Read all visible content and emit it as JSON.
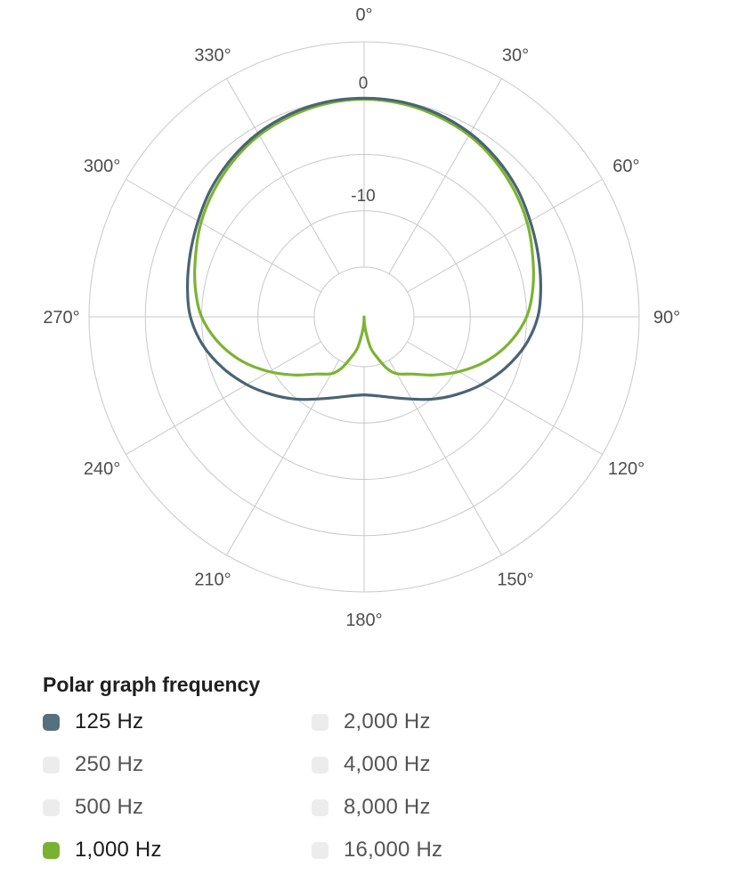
{
  "chart_data": {
    "type": "line",
    "subtype": "polar-pattern",
    "title": "Polar graph frequency",
    "angle_axis": {
      "tick_step_deg": 30,
      "labels": [
        "0°",
        "30°",
        "60°",
        "90°",
        "120°",
        "150°",
        "180°",
        "210°",
        "240°",
        "270°",
        "300°",
        "330°"
      ]
    },
    "radial_axis": {
      "unit": "dB",
      "ring_values_db": [
        5,
        0,
        -5,
        -10,
        -15
      ],
      "shown_labels": [
        {
          "text": "0",
          "db": 0
        },
        {
          "text": "-10",
          "db": -10
        }
      ],
      "center_db": -19.45
    },
    "grid_color": "#c8c8c8",
    "label_color": "#4d4d4d",
    "series": [
      {
        "name": "125 Hz",
        "color": "#4a6473",
        "symmetry": "mirror",
        "points_deg_db": [
          [
            0,
            0
          ],
          [
            10,
            -0.05
          ],
          [
            20,
            -0.25
          ],
          [
            30,
            -0.6
          ],
          [
            40,
            -1.1
          ],
          [
            50,
            -1.7
          ],
          [
            60,
            -2.4
          ],
          [
            70,
            -3.0
          ],
          [
            80,
            -3.5
          ],
          [
            90,
            -4.0
          ],
          [
            100,
            -4.9
          ],
          [
            110,
            -6.1
          ],
          [
            120,
            -7.4
          ],
          [
            130,
            -8.7
          ],
          [
            140,
            -9.9
          ],
          [
            150,
            -11.0
          ],
          [
            160,
            -11.8
          ],
          [
            170,
            -12.3
          ],
          [
            180,
            -12.5
          ]
        ]
      },
      {
        "name": "1,000 Hz",
        "color": "#7cb332",
        "symmetry": "mirror",
        "points_deg_db": [
          [
            0,
            -0.1
          ],
          [
            10,
            -0.2
          ],
          [
            20,
            -0.45
          ],
          [
            30,
            -0.8
          ],
          [
            40,
            -1.35
          ],
          [
            50,
            -2.0
          ],
          [
            60,
            -2.7
          ],
          [
            70,
            -3.5
          ],
          [
            80,
            -4.2
          ],
          [
            90,
            -5.0
          ],
          [
            100,
            -6.3
          ],
          [
            110,
            -7.9
          ],
          [
            120,
            -9.7
          ],
          [
            130,
            -11.4
          ],
          [
            140,
            -12.8
          ],
          [
            150,
            -13.6
          ],
          [
            156,
            -14.4
          ],
          [
            162,
            -15.6
          ],
          [
            168,
            -16.6
          ],
          [
            173,
            -18.0
          ],
          [
            177,
            -18.9
          ],
          [
            180,
            -19.45
          ]
        ]
      }
    ]
  },
  "legend": {
    "title": "Polar graph frequency",
    "inactive_swatch_color": "#ececec",
    "items": [
      {
        "label": "125 Hz",
        "active": true,
        "color": "#57707e"
      },
      {
        "label": "250 Hz",
        "active": false
      },
      {
        "label": "500 Hz",
        "active": false
      },
      {
        "label": "1,000 Hz",
        "active": true,
        "color": "#79b233"
      },
      {
        "label": "2,000 Hz",
        "active": false
      },
      {
        "label": "4,000 Hz",
        "active": false
      },
      {
        "label": "8,000 Hz",
        "active": false
      },
      {
        "label": "16,000 Hz",
        "active": false
      }
    ]
  }
}
